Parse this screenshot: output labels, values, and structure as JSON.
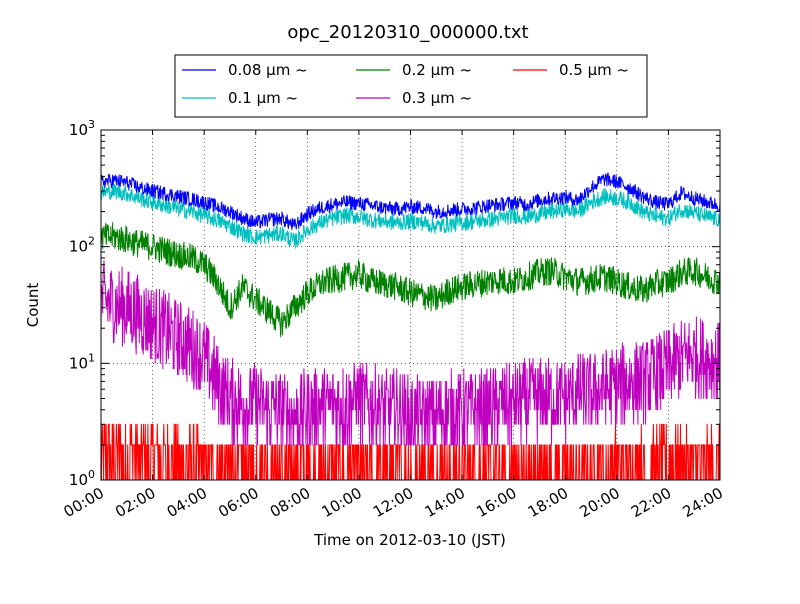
{
  "chart_data": {
    "type": "line",
    "title": "opc_20120310_000000.txt",
    "xlabel": "Time on 2012-03-10 (JST)",
    "ylabel": "Count",
    "x_range_hours": [
      0,
      24
    ],
    "x_tick_labels": [
      "00:00",
      "02:00",
      "04:00",
      "06:00",
      "08:00",
      "10:00",
      "12:00",
      "14:00",
      "16:00",
      "18:00",
      "20:00",
      "22:00",
      "24:00"
    ],
    "y_scale": "log",
    "ylim": [
      1,
      1000
    ],
    "y_ticks": [
      {
        "base": "10",
        "exp": "0"
      },
      {
        "base": "10",
        "exp": "1"
      },
      {
        "base": "10",
        "exp": "2"
      },
      {
        "base": "10",
        "exp": "3"
      }
    ],
    "grid": true,
    "legend_placement": "top-center",
    "series": [
      {
        "name": "0.08 μm ~",
        "color": "#0000ff",
        "hours": [
          0,
          0.5,
          1,
          1.5,
          2,
          2.5,
          3,
          3.5,
          4,
          4.5,
          5,
          5.5,
          6,
          6.5,
          7,
          7.5,
          8,
          8.5,
          9,
          9.5,
          10,
          10.5,
          11,
          11.5,
          12,
          12.5,
          13,
          13.5,
          14,
          14.5,
          15,
          15.5,
          16,
          16.5,
          17,
          17.5,
          18,
          18.5,
          19,
          19.5,
          20,
          20.5,
          21,
          21.5,
          22,
          22.5,
          23,
          23.5,
          24
        ],
        "values": [
          360,
          370,
          355,
          320,
          300,
          285,
          270,
          255,
          240,
          220,
          200,
          175,
          160,
          170,
          175,
          150,
          190,
          215,
          230,
          240,
          235,
          225,
          215,
          210,
          220,
          215,
          200,
          205,
          210,
          215,
          225,
          230,
          240,
          230,
          250,
          260,
          265,
          250,
          320,
          380,
          360,
          320,
          270,
          240,
          230,
          290,
          260,
          240,
          225
        ],
        "noise": 0.07
      },
      {
        "name": "0.1 μm ~",
        "color": "#00bfbf",
        "hours": [
          0,
          0.5,
          1,
          1.5,
          2,
          2.5,
          3,
          3.5,
          4,
          4.5,
          5,
          5.5,
          6,
          6.5,
          7,
          7.5,
          8,
          8.5,
          9,
          9.5,
          10,
          10.5,
          11,
          11.5,
          12,
          12.5,
          13,
          13.5,
          14,
          14.5,
          15,
          15.5,
          16,
          16.5,
          17,
          17.5,
          18,
          18.5,
          19,
          19.5,
          20,
          20.5,
          21,
          21.5,
          22,
          22.5,
          23,
          23.5,
          24
        ],
        "values": [
          290,
          300,
          285,
          260,
          240,
          225,
          210,
          200,
          185,
          170,
          150,
          130,
          120,
          125,
          130,
          110,
          140,
          160,
          175,
          185,
          180,
          170,
          165,
          160,
          165,
          160,
          150,
          155,
          160,
          165,
          170,
          175,
          185,
          180,
          190,
          200,
          210,
          200,
          240,
          270,
          260,
          240,
          200,
          180,
          175,
          210,
          195,
          180,
          170
        ],
        "noise": 0.08
      },
      {
        "name": "0.2 μm ~",
        "color": "#008000",
        "hours": [
          0,
          0.5,
          1,
          1.5,
          2,
          2.5,
          3,
          3.5,
          4,
          4.5,
          5,
          5.5,
          6,
          6.5,
          7,
          7.5,
          8,
          8.5,
          9,
          9.5,
          10,
          10.5,
          11,
          11.5,
          12,
          12.5,
          13,
          13.5,
          14,
          14.5,
          15,
          15.5,
          16,
          16.5,
          17,
          17.5,
          18,
          18.5,
          19,
          19.5,
          20,
          20.5,
          21,
          21.5,
          22,
          22.5,
          23,
          23.5,
          24
        ],
        "values": [
          120,
          122,
          115,
          105,
          100,
          92,
          85,
          80,
          70,
          50,
          30,
          45,
          35,
          28,
          22,
          30,
          40,
          48,
          52,
          55,
          58,
          50,
          48,
          45,
          40,
          38,
          35,
          42,
          45,
          48,
          50,
          52,
          50,
          55,
          60,
          62,
          55,
          50,
          52,
          55,
          50,
          45,
          42,
          48,
          50,
          60,
          62,
          55,
          50
        ],
        "noise": 0.14
      },
      {
        "name": "0.3 μm ~",
        "color": "#bf00bf",
        "hours": [
          0,
          0.5,
          1,
          1.5,
          2,
          2.5,
          3,
          3.5,
          4,
          4.5,
          5,
          5.5,
          6,
          6.5,
          7,
          7.5,
          8,
          8.5,
          9,
          9.5,
          10,
          10.5,
          11,
          11.5,
          12,
          12.5,
          13,
          13.5,
          14,
          14.5,
          15,
          15.5,
          16,
          16.5,
          17,
          17.5,
          18,
          18.5,
          19,
          19.5,
          20,
          20.5,
          21,
          21.5,
          22,
          22.5,
          23,
          23.5,
          24
        ],
        "values": [
          35,
          32,
          30,
          26,
          22,
          19,
          16,
          14,
          11,
          7,
          5,
          4.5,
          4.5,
          4,
          4,
          3.5,
          4,
          4.5,
          4.5,
          4.5,
          5,
          4.5,
          4,
          4,
          3.5,
          3.5,
          3.5,
          4,
          4,
          4,
          4,
          4.5,
          4.5,
          5,
          5,
          5,
          5,
          5.5,
          5.5,
          6,
          6.5,
          7,
          7,
          8,
          9,
          11,
          12,
          11,
          10
        ],
        "noise": 0.4
      },
      {
        "name": "0.5 μm ~",
        "color": "#ff0000",
        "hours": [
          0,
          2,
          4,
          6,
          8,
          10,
          12,
          14,
          16,
          18,
          20,
          22,
          24
        ],
        "values": [
          1.7,
          1.6,
          1.3,
          1.2,
          1.3,
          1.2,
          1.2,
          1.2,
          1.2,
          1.2,
          1.3,
          1.4,
          1.4
        ],
        "noise": 0.35
      }
    ]
  }
}
